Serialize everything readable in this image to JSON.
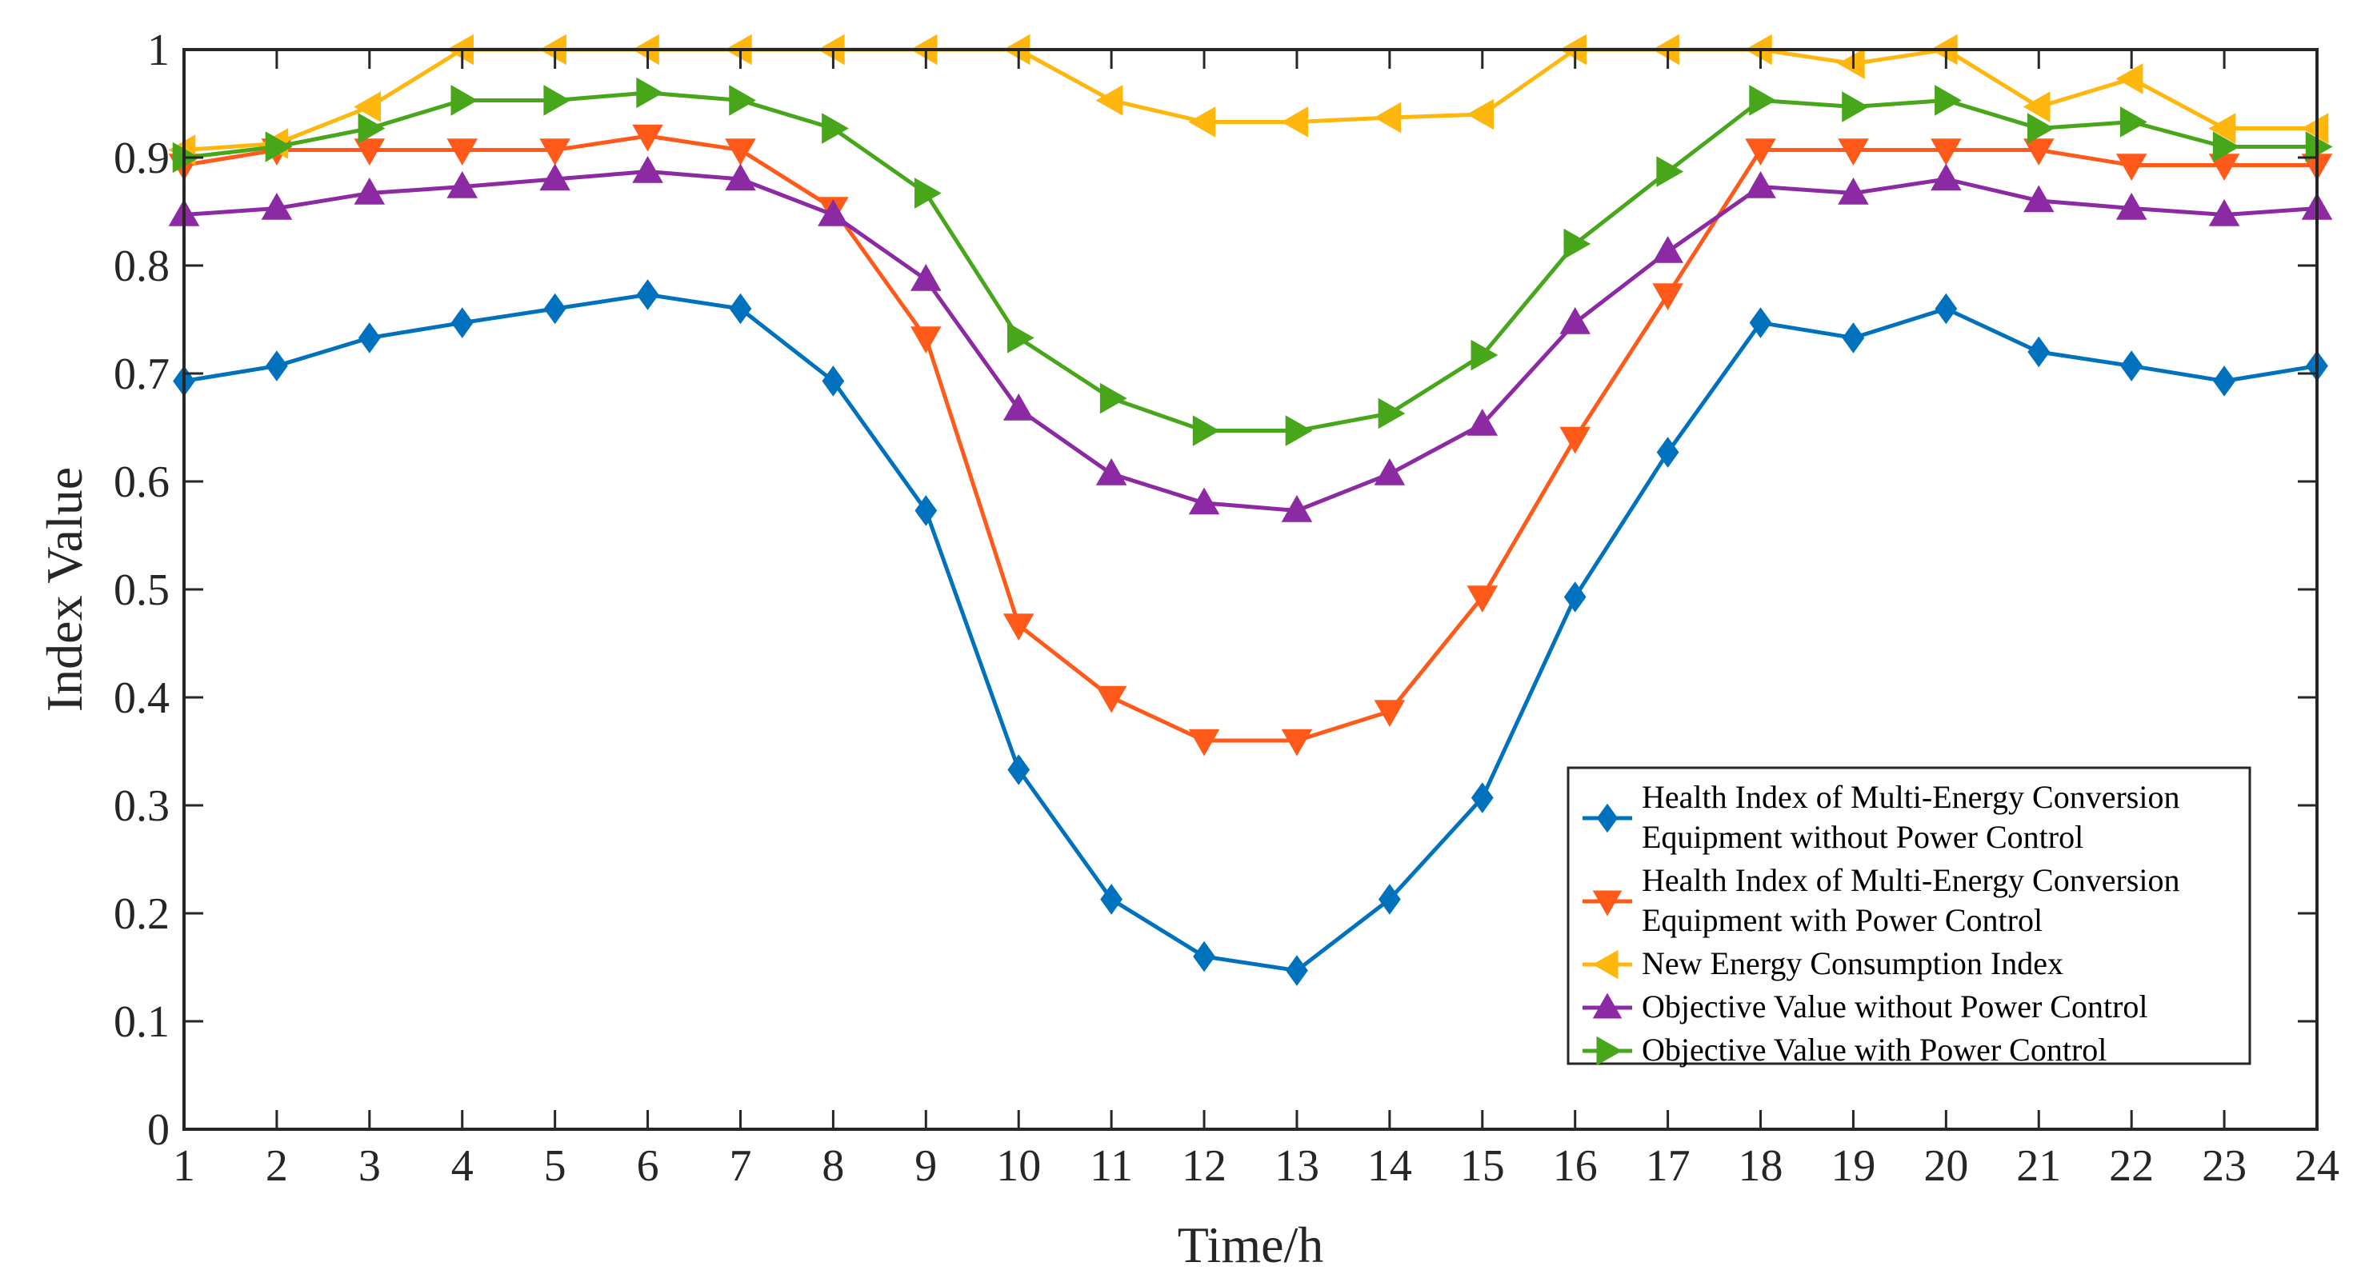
{
  "chart_data": {
    "type": "line",
    "title": "",
    "xlabel": "Time/h",
    "ylabel": "Index Value",
    "xlim": [
      1,
      24
    ],
    "ylim": [
      0,
      1
    ],
    "x": [
      1,
      2,
      3,
      4,
      5,
      6,
      7,
      8,
      9,
      10,
      11,
      12,
      13,
      14,
      15,
      16,
      17,
      18,
      19,
      20,
      21,
      22,
      23,
      24
    ],
    "xticks": [
      "1",
      "2",
      "3",
      "4",
      "5",
      "6",
      "7",
      "8",
      "9",
      "10",
      "11",
      "12",
      "13",
      "14",
      "15",
      "16",
      "17",
      "18",
      "19",
      "20",
      "21",
      "22",
      "23",
      "24"
    ],
    "yticks": [
      "0",
      "0.1",
      "0.2",
      "0.3",
      "0.4",
      "0.5",
      "0.6",
      "0.7",
      "0.8",
      "0.9",
      "1"
    ],
    "grid": false,
    "legend_position": "bottom-right",
    "series": [
      {
        "name": "Health Index of Multi-Energy Conversion Equipment without Power Control",
        "legend_lines": [
          "Health Index of Multi-Energy Conversion",
          "Equipment without Power Control"
        ],
        "color": "#0072BD",
        "marker": "diamond",
        "values": [
          0.693,
          0.707,
          0.733,
          0.747,
          0.76,
          0.773,
          0.76,
          0.693,
          0.573,
          0.333,
          0.213,
          0.16,
          0.147,
          0.213,
          0.307,
          0.493,
          0.627,
          0.747,
          0.733,
          0.76,
          0.72,
          0.707,
          0.693,
          0.707
        ]
      },
      {
        "name": "Health Index of Multi-Energy Conversion Equipment with Power Control",
        "legend_lines": [
          "Health Index of Multi-Energy Conversion",
          "Equipment with Power Control"
        ],
        "color": "#FF5A1A",
        "marker": "triangle-down",
        "values": [
          0.893,
          0.907,
          0.907,
          0.907,
          0.907,
          0.92,
          0.907,
          0.853,
          0.733,
          0.467,
          0.4,
          0.36,
          0.36,
          0.387,
          0.493,
          0.64,
          0.773,
          0.907,
          0.907,
          0.907,
          0.907,
          0.893,
          0.893,
          0.893
        ]
      },
      {
        "name": "New Energy Consumption Index",
        "legend_lines": [
          "New Energy Consumption Index"
        ],
        "color": "#FFB60D",
        "marker": "triangle-left",
        "values": [
          0.907,
          0.913,
          0.947,
          1.0,
          1.0,
          1.0,
          1.0,
          1.0,
          1.0,
          1.0,
          0.953,
          0.933,
          0.933,
          0.937,
          0.94,
          1.0,
          1.0,
          1.0,
          0.987,
          1.0,
          0.947,
          0.973,
          0.927,
          0.927
        ]
      },
      {
        "name": "Objective Value without Power Control",
        "legend_lines": [
          "Objective Value without Power Control"
        ],
        "color": "#8B2AA3",
        "marker": "triangle-up",
        "values": [
          0.847,
          0.853,
          0.867,
          0.873,
          0.88,
          0.887,
          0.88,
          0.847,
          0.787,
          0.667,
          0.607,
          0.58,
          0.573,
          0.607,
          0.653,
          0.747,
          0.813,
          0.873,
          0.867,
          0.88,
          0.86,
          0.853,
          0.847,
          0.853
        ]
      },
      {
        "name": "Objective Value with Power Control",
        "legend_lines": [
          "Objective Value with Power Control"
        ],
        "color": "#48A61B",
        "marker": "triangle-right",
        "values": [
          0.9,
          0.91,
          0.927,
          0.953,
          0.953,
          0.96,
          0.953,
          0.927,
          0.867,
          0.733,
          0.677,
          0.647,
          0.647,
          0.663,
          0.717,
          0.82,
          0.887,
          0.953,
          0.947,
          0.953,
          0.927,
          0.933,
          0.91,
          0.91
        ]
      }
    ]
  }
}
